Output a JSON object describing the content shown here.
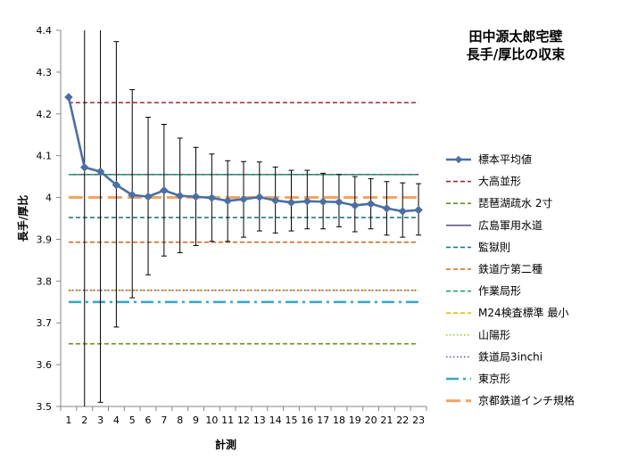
{
  "chart_data": {
    "type": "line",
    "title_lines": [
      "田中源太郎宅壁",
      "長手/厚比の収束"
    ],
    "xlabel": "計測",
    "ylabel": "長手/厚比",
    "ylim": [
      3.5,
      4.4
    ],
    "yticks": [
      "3.5",
      "3.6",
      "3.7",
      "3.8",
      "3.9",
      "4",
      "4.1",
      "4.2",
      "4.3",
      "4.4"
    ],
    "x": [
      1,
      2,
      3,
      4,
      5,
      6,
      7,
      8,
      9,
      10,
      11,
      12,
      13,
      14,
      15,
      16,
      17,
      18,
      19,
      20,
      21,
      22,
      23
    ],
    "grid": false,
    "legend_position": "right",
    "main_series": {
      "name": "標本平均値",
      "color": "#4a6fa5",
      "values": [
        4.24,
        4.072,
        4.062,
        4.03,
        4.006,
        4.002,
        4.017,
        4.004,
        4.002,
        3.999,
        3.992,
        3.996,
        4.001,
        3.993,
        3.988,
        3.991,
        3.99,
        3.989,
        3.981,
        3.985,
        3.974,
        3.967,
        3.97
      ],
      "error_low": [
        null,
        3.5,
        3.51,
        3.69,
        3.76,
        3.815,
        3.86,
        3.868,
        3.885,
        3.895,
        3.895,
        3.905,
        3.92,
        3.915,
        3.92,
        3.925,
        3.925,
        3.93,
        3.918,
        3.925,
        3.91,
        3.905,
        3.91
      ],
      "error_high": [
        null,
        4.4,
        4.4,
        4.373,
        4.258,
        4.192,
        4.175,
        4.142,
        4.12,
        4.104,
        4.088,
        4.086,
        4.085,
        4.073,
        4.065,
        4.065,
        4.058,
        4.055,
        4.05,
        4.045,
        4.038,
        4.035,
        4.033
      ]
    },
    "reference_lines": [
      {
        "name": "大高並形",
        "value": 4.227,
        "color": "#a0283a",
        "style": "dash"
      },
      {
        "name": "琵琶湖疏水 2寸",
        "value": 3.65,
        "color": "#6b8e23",
        "style": "dash"
      },
      {
        "name": "広島軍用水道",
        "value": 4.055,
        "color": "#4b3b6b",
        "style": "solid"
      },
      {
        "name": "監獄則",
        "value": 3.952,
        "color": "#217a8a",
        "style": "dash"
      },
      {
        "name": "鉄道庁第二種",
        "value": 3.893,
        "color": "#d2691e",
        "style": "dash"
      },
      {
        "name": "作業局形",
        "value": 4.055,
        "color": "#21a06a",
        "style": "dash"
      },
      {
        "name": "M24検査標準 最小",
        "value": 3.778,
        "color": "#e6c000",
        "style": "dash"
      },
      {
        "name": "山陽形",
        "value": 3.778,
        "color": "#9acd32",
        "style": "dot"
      },
      {
        "name": "鉄道局3inchi",
        "value": 3.778,
        "color": "#7b4fa8",
        "style": "dot"
      },
      {
        "name": "東京形",
        "value": 3.75,
        "color": "#3aa8c1",
        "style": "dashdot"
      },
      {
        "name": "京都鉄道インチ規格",
        "value": 4.0,
        "color": "#f4a460",
        "style": "longdash"
      }
    ]
  }
}
